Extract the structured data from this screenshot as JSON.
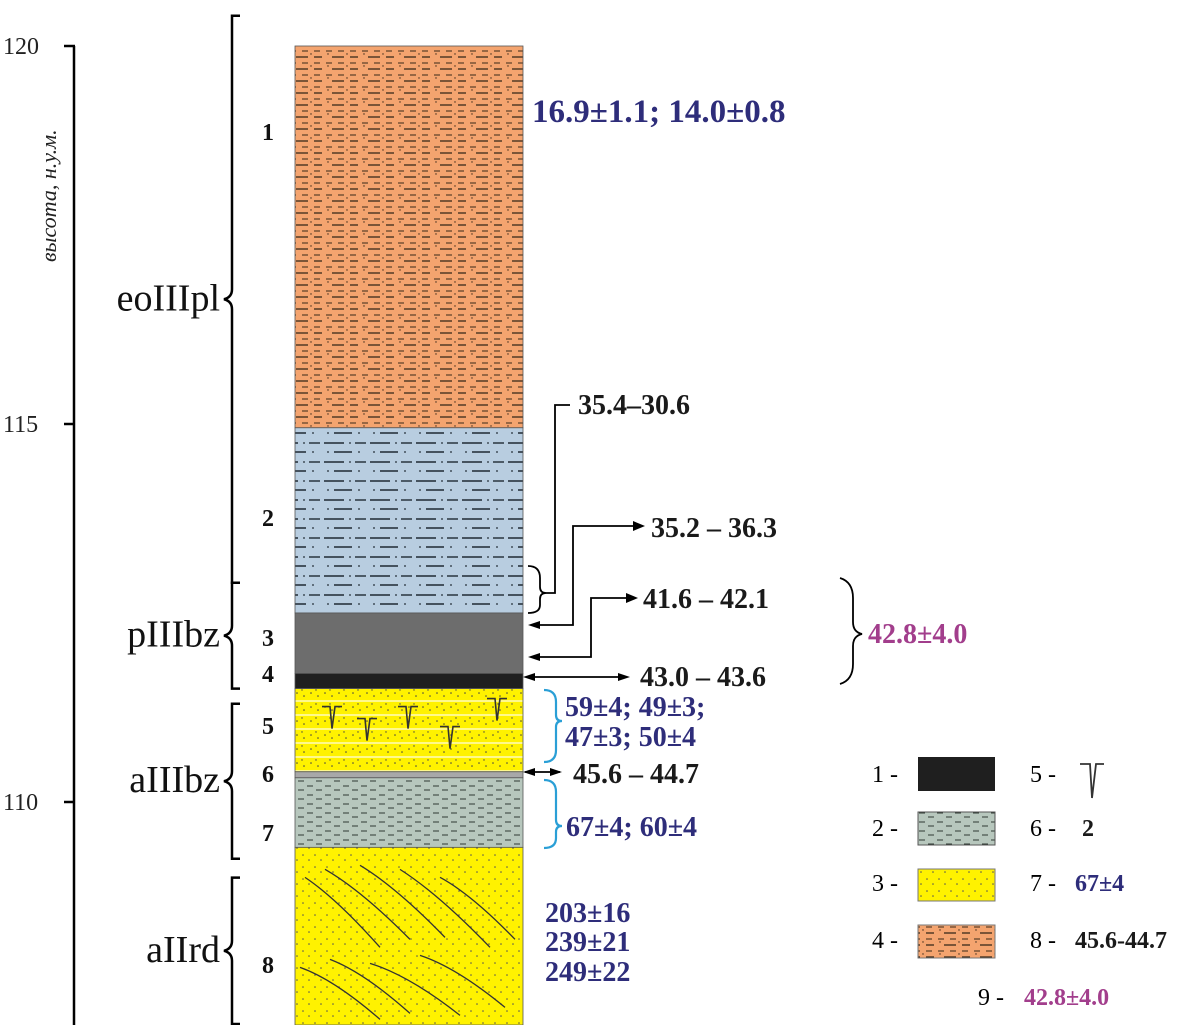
{
  "axis": {
    "label": "высота, н.у.м.",
    "ticks": [
      {
        "value": 120,
        "label": "120"
      },
      {
        "value": 115,
        "label": "115"
      },
      {
        "value": 110,
        "label": "110"
      }
    ]
  },
  "units": [
    {
      "label": "eoIIIpl",
      "from": 120.4,
      "to": 112.9
    },
    {
      "label": "pIIIbz",
      "from": 112.9,
      "to": 111.5
    },
    {
      "label": "aIIIbz",
      "from": 111.3,
      "to": 109.25
    },
    {
      "label": "aIIrd",
      "from": 109.0,
      "to": 106.7
    }
  ],
  "layers": [
    {
      "number": "1",
      "top": 120.0,
      "bottom": 114.95,
      "fill_type": 4
    },
    {
      "number": "2",
      "top": 114.95,
      "bottom": 112.5,
      "fill_type": 2
    },
    {
      "number": "3",
      "top": 112.5,
      "bottom": 111.7,
      "fill_type": 1
    },
    {
      "number": "4",
      "top": 111.7,
      "bottom": 111.5,
      "fill_type": 1
    },
    {
      "number": "5",
      "top": 111.5,
      "bottom": 110.4,
      "fill_type": 3
    },
    {
      "number": "6",
      "top": 110.4,
      "bottom": 110.32,
      "fill_type": 6
    },
    {
      "number": "7",
      "top": 110.32,
      "bottom": 109.4,
      "fill_type": 2
    },
    {
      "number": "8",
      "top": 109.4,
      "bottom": 106.7,
      "fill_type": 3
    }
  ],
  "osl_dates": {
    "layer1": "16.9±1.1; 14.0±0.8",
    "layer5": [
      "59±4; 49±3;",
      "47±3; 50±4"
    ],
    "layer7": "67±4; 60±4",
    "layer8": [
      "203±16",
      "239±21",
      "249±22"
    ]
  },
  "c14_dates": [
    "35.4–30.6",
    "35.2 – 36.3",
    "41.6 – 42.1",
    "43.0 – 43.6",
    "45.6 – 44.7"
  ],
  "combined_date": "42.8±4.0",
  "legend": [
    {
      "num": "1 -",
      "kind": "black"
    },
    {
      "num": "2 -",
      "kind": "grey-silt"
    },
    {
      "num": "3 -",
      "kind": "yellow-sand"
    },
    {
      "num": "4 -",
      "kind": "orange-loam"
    },
    {
      "num": "5 -",
      "kind": "wedge-symbol"
    },
    {
      "num": "6 -",
      "kind": "layer-number",
      "sample": "2"
    },
    {
      "num": "7 -",
      "kind": "osl-date",
      "sample": "67±4"
    },
    {
      "num": "8 -",
      "kind": "c14-date",
      "sample": "45.6-44.7"
    },
    {
      "num": "9 -",
      "kind": "combined-date",
      "sample": "42.8±4.0"
    }
  ],
  "colors": {
    "osl": "#2e2d7a",
    "combined": "#a23e8c",
    "bracket_blue": "#2a9fd6",
    "loam": "#f4a46f",
    "silt_blue": "#b8cde0",
    "dark_grey": "#6d6d6d",
    "black": "#1f1f1f",
    "sand": "#fff200",
    "grey_green": "#b7c7bd",
    "band_grey": "#a8a8a8"
  }
}
